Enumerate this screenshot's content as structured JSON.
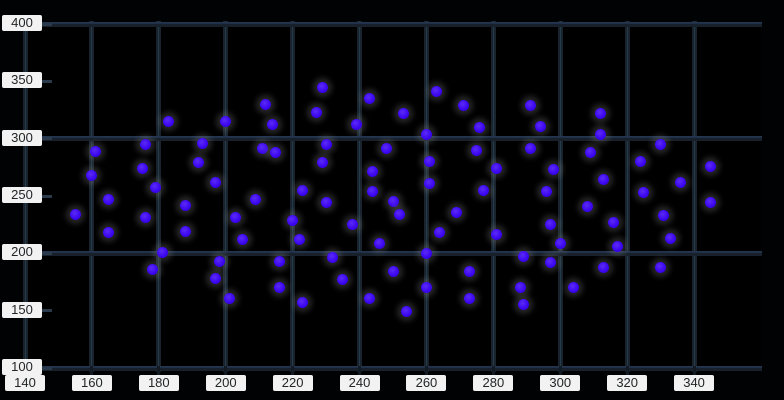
{
  "chart_data": {
    "type": "scatter",
    "title": "",
    "xlabel": "",
    "ylabel": "",
    "xlim": [
      140,
      360
    ],
    "ylim": [
      100,
      400
    ],
    "x_ticks": [
      140,
      160,
      180,
      200,
      220,
      240,
      260,
      280,
      300,
      320,
      340
    ],
    "y_ticks": [
      400,
      350,
      300,
      250,
      200,
      150,
      100
    ],
    "grid": {
      "x_lines": [
        140,
        160,
        180,
        200,
        220,
        240,
        260,
        280,
        300,
        320,
        340
      ],
      "y_lines": [
        400,
        300,
        200,
        100
      ],
      "on": true
    },
    "legend": null,
    "points": [
      [
        183,
        315
      ],
      [
        200,
        315
      ],
      [
        212,
        330
      ],
      [
        214,
        312
      ],
      [
        176,
        295
      ],
      [
        193,
        296
      ],
      [
        211,
        291
      ],
      [
        161,
        289
      ],
      [
        192,
        279
      ],
      [
        175,
        274
      ],
      [
        160,
        268
      ],
      [
        197,
        262
      ],
      [
        179,
        257
      ],
      [
        165,
        247
      ],
      [
        215,
        288
      ],
      [
        229,
        345
      ],
      [
        243,
        335
      ],
      [
        263,
        341
      ],
      [
        271,
        329
      ],
      [
        227,
        323
      ],
      [
        253,
        322
      ],
      [
        239,
        312
      ],
      [
        276,
        310
      ],
      [
        260,
        304
      ],
      [
        230,
        295
      ],
      [
        248,
        291
      ],
      [
        275,
        290
      ],
      [
        229,
        279
      ],
      [
        261,
        280
      ],
      [
        281,
        274
      ],
      [
        244,
        271
      ],
      [
        223,
        255
      ],
      [
        261,
        261
      ],
      [
        277,
        255
      ],
      [
        244,
        254
      ],
      [
        291,
        329
      ],
      [
        312,
        322
      ],
      [
        294,
        311
      ],
      [
        312,
        304
      ],
      [
        291,
        291
      ],
      [
        309,
        288
      ],
      [
        324,
        280
      ],
      [
        330,
        295
      ],
      [
        298,
        273
      ],
      [
        313,
        264
      ],
      [
        336,
        262
      ],
      [
        345,
        276
      ],
      [
        296,
        254
      ],
      [
        325,
        253
      ],
      [
        155,
        234
      ],
      [
        165,
        218
      ],
      [
        176,
        231
      ],
      [
        188,
        242
      ],
      [
        188,
        219
      ],
      [
        181,
        201
      ],
      [
        203,
        231
      ],
      [
        205,
        212
      ],
      [
        209,
        247
      ],
      [
        198,
        193
      ],
      [
        197,
        178
      ],
      [
        201,
        161
      ],
      [
        178,
        186
      ],
      [
        216,
        193
      ],
      [
        230,
        244
      ],
      [
        250,
        245
      ],
      [
        252,
        234
      ],
      [
        220,
        229
      ],
      [
        238,
        225
      ],
      [
        222,
        212
      ],
      [
        246,
        209
      ],
      [
        232,
        196
      ],
      [
        235,
        177
      ],
      [
        223,
        157
      ],
      [
        243,
        161
      ],
      [
        250,
        184
      ],
      [
        254,
        149
      ],
      [
        260,
        200
      ],
      [
        260,
        170
      ],
      [
        269,
        236
      ],
      [
        264,
        218
      ],
      [
        281,
        216
      ],
      [
        273,
        184
      ],
      [
        273,
        161
      ],
      [
        289,
        197
      ],
      [
        289,
        155
      ],
      [
        216,
        170
      ],
      [
        288,
        170
      ],
      [
        308,
        241
      ],
      [
        297,
        225
      ],
      [
        300,
        209
      ],
      [
        316,
        227
      ],
      [
        317,
        206
      ],
      [
        331,
        233
      ],
      [
        333,
        213
      ],
      [
        345,
        244
      ],
      [
        297,
        192
      ],
      [
        313,
        188
      ],
      [
        304,
        170
      ],
      [
        330,
        188
      ]
    ],
    "style": {
      "point_color": "#3c07f0",
      "point_halo": "rgba(140,140,140,0.28)",
      "grid_color": "#1a232d",
      "grid_accent_h": "#233550",
      "grid_accent_v": "#25404d",
      "plot_background": "#000000",
      "page_background": "#000204",
      "label_chip_bg": "#f2f2f2",
      "label_text_color": "#222426"
    }
  }
}
